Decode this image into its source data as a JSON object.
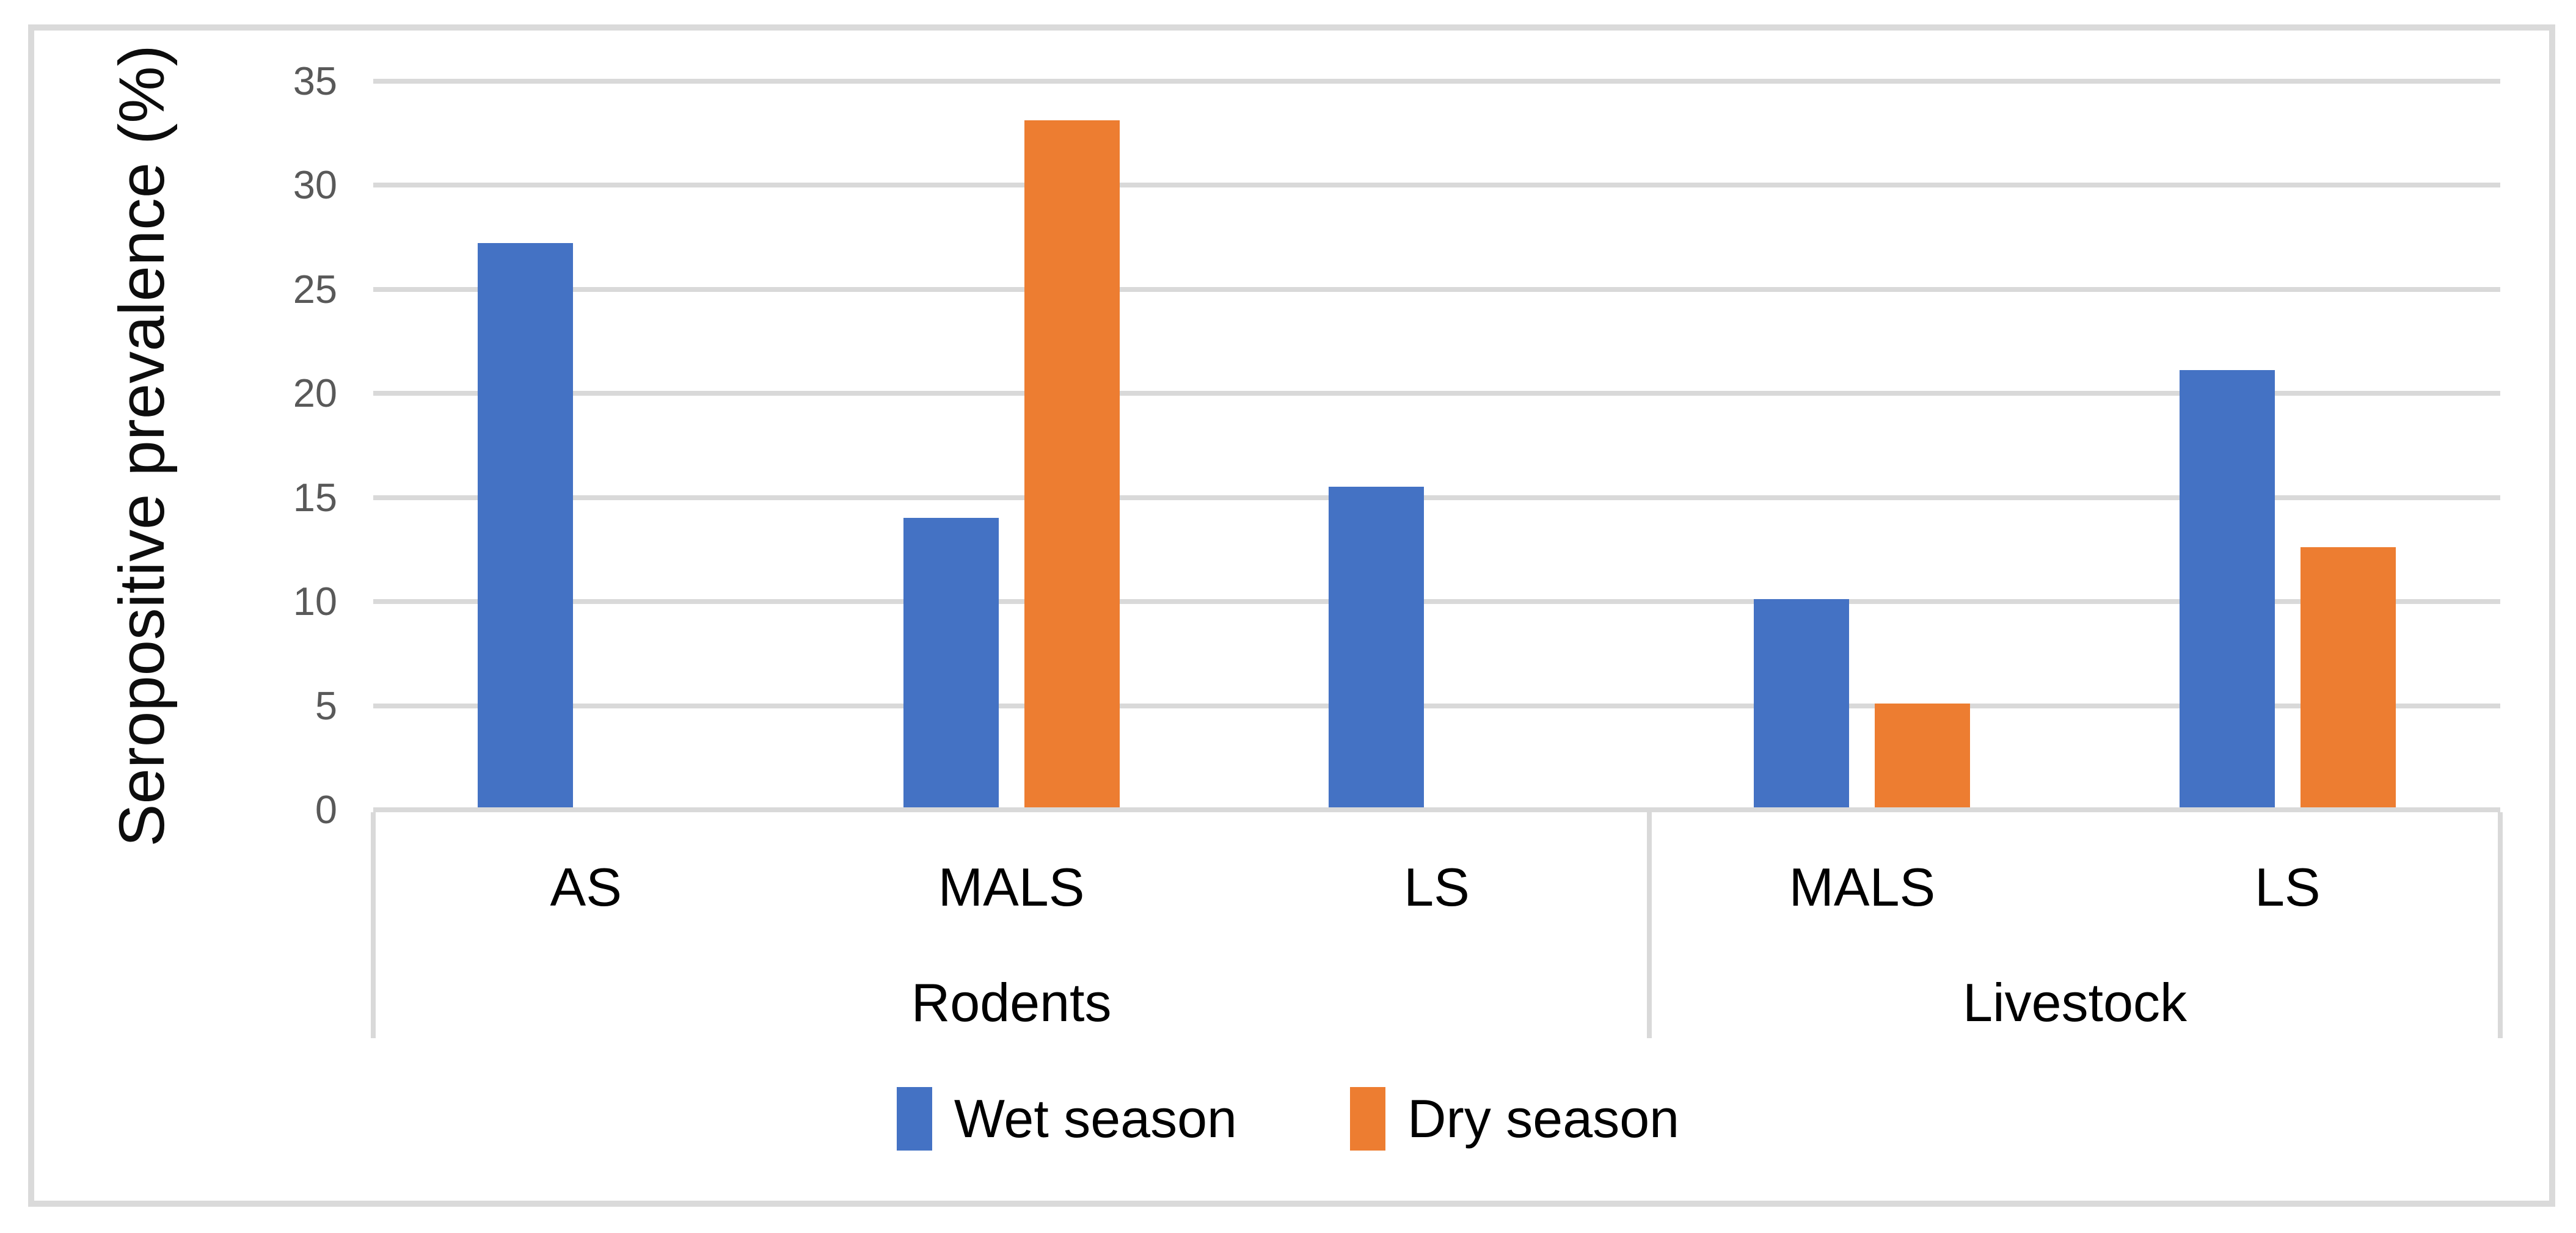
{
  "figure": {
    "background": "#ffffff",
    "border_color": "#dadada"
  },
  "y_axis": {
    "title": "Seropositive prevalence (%)",
    "tick_labels": [
      "0",
      "5",
      "10",
      "15",
      "20",
      "25",
      "30",
      "35"
    ],
    "min": 0,
    "max": 35,
    "tick_color": "#595959",
    "gridline_color": "#d9d9d9"
  },
  "x_axis": {
    "groups": [
      {
        "label": "Rodents",
        "categories": [
          "AS",
          "MALS",
          "LS"
        ]
      },
      {
        "label": "Livestock",
        "categories": [
          "MALS",
          "LS"
        ]
      }
    ]
  },
  "legend": {
    "position": "bottom",
    "items": [
      {
        "label": "Wet season",
        "color": "#4472C4",
        "swatch": "column-swatch-icon"
      },
      {
        "label": "Dry season",
        "color": "#ED7D31",
        "swatch": "column-swatch-icon"
      }
    ]
  },
  "chart_data": {
    "type": "bar",
    "title": "",
    "xlabel": "",
    "ylabel": "Seropositive prevalence (%)",
    "ylim": [
      0,
      35
    ],
    "ytick_step": 5,
    "grid": true,
    "legend_position": "bottom",
    "categories": [
      "AS",
      "MALS",
      "LS",
      "MALS",
      "LS"
    ],
    "category_groups": [
      "Rodents",
      "Rodents",
      "Rodents",
      "Livestock",
      "Livestock"
    ],
    "series": [
      {
        "name": "Wet season",
        "color": "#4472C4",
        "values": [
          27.1,
          13.9,
          15.4,
          10,
          21
        ]
      },
      {
        "name": "Dry season",
        "color": "#ED7D31",
        "values": [
          null,
          33,
          null,
          5,
          12.5
        ]
      }
    ]
  }
}
